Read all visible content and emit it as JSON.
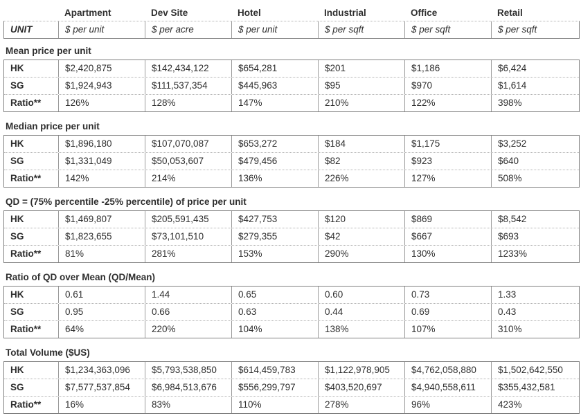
{
  "colors": {
    "background": "#ffffff",
    "text": "#2e2e2e",
    "border_solid": "#7f7f7f",
    "border_inner": "#9a9a9a",
    "border_dotted": "#b0b0b0"
  },
  "columns": [
    "",
    "Apartment",
    "Dev Site",
    "Hotel",
    "Industrial",
    "Office",
    "Retail"
  ],
  "unit_row": {
    "label": "UNIT",
    "units": [
      "$ per unit",
      "$ per acre",
      "$ per unit",
      "$ per sqft",
      "$ per sqft",
      "$ per sqft"
    ]
  },
  "sections": [
    {
      "title": "Mean price per unit",
      "rows": [
        {
          "label": "HK",
          "values": [
            "$2,420,875",
            "$142,434,122",
            "$654,281",
            "$201",
            "$1,186",
            "$6,424"
          ]
        },
        {
          "label": "SG",
          "values": [
            "$1,924,943",
            "$111,537,354",
            "$445,963",
            "$95",
            "$970",
            "$1,614"
          ]
        },
        {
          "label": "Ratio**",
          "values": [
            "126%",
            "128%",
            "147%",
            "210%",
            "122%",
            "398%"
          ]
        }
      ]
    },
    {
      "title": "Median price per unit",
      "rows": [
        {
          "label": "HK",
          "values": [
            "$1,896,180",
            "$107,070,087",
            "$653,272",
            "$184",
            "$1,175",
            "$3,252"
          ]
        },
        {
          "label": "SG",
          "values": [
            "$1,331,049",
            "$50,053,607",
            "$479,456",
            "$82",
            "$923",
            "$640"
          ]
        },
        {
          "label": "Ratio**",
          "values": [
            "142%",
            "214%",
            "136%",
            "226%",
            "127%",
            "508%"
          ]
        }
      ]
    },
    {
      "title": "QD = (75% percentile -25% percentile) of price per unit",
      "rows": [
        {
          "label": "HK",
          "values": [
            "$1,469,807",
            "$205,591,435",
            "$427,753",
            "$120",
            "$869",
            "$8,542"
          ]
        },
        {
          "label": "SG",
          "values": [
            "$1,823,655",
            "$73,101,510",
            "$279,355",
            "$42",
            "$667",
            "$693"
          ]
        },
        {
          "label": "Ratio**",
          "values": [
            "81%",
            "281%",
            "153%",
            "290%",
            "130%",
            "1233%"
          ]
        }
      ]
    },
    {
      "title": "Ratio of QD over Mean (QD/Mean)",
      "rows": [
        {
          "label": "HK",
          "values": [
            "0.61",
            "1.44",
            "0.65",
            "0.60",
            "0.73",
            "1.33"
          ]
        },
        {
          "label": "SG",
          "values": [
            "0.95",
            "0.66",
            "0.63",
            "0.44",
            "0.69",
            "0.43"
          ]
        },
        {
          "label": "Ratio**",
          "values": [
            "64%",
            "220%",
            "104%",
            "138%",
            "107%",
            "310%"
          ]
        }
      ]
    },
    {
      "title": "Total Volume ($US)",
      "rows": [
        {
          "label": "HK",
          "values": [
            "$1,234,363,096",
            "$5,793,538,850",
            "$614,459,783",
            "$1,122,978,905",
            "$4,762,058,880",
            "$1,502,642,550"
          ]
        },
        {
          "label": "SG",
          "values": [
            "$7,577,537,854",
            "$6,984,513,676",
            "$556,299,797",
            "$403,520,697",
            "$4,940,558,611",
            "$355,432,581"
          ]
        },
        {
          "label": "Ratio**",
          "values": [
            "16%",
            "83%",
            "110%",
            "278%",
            "96%",
            "423%"
          ]
        }
      ]
    }
  ]
}
